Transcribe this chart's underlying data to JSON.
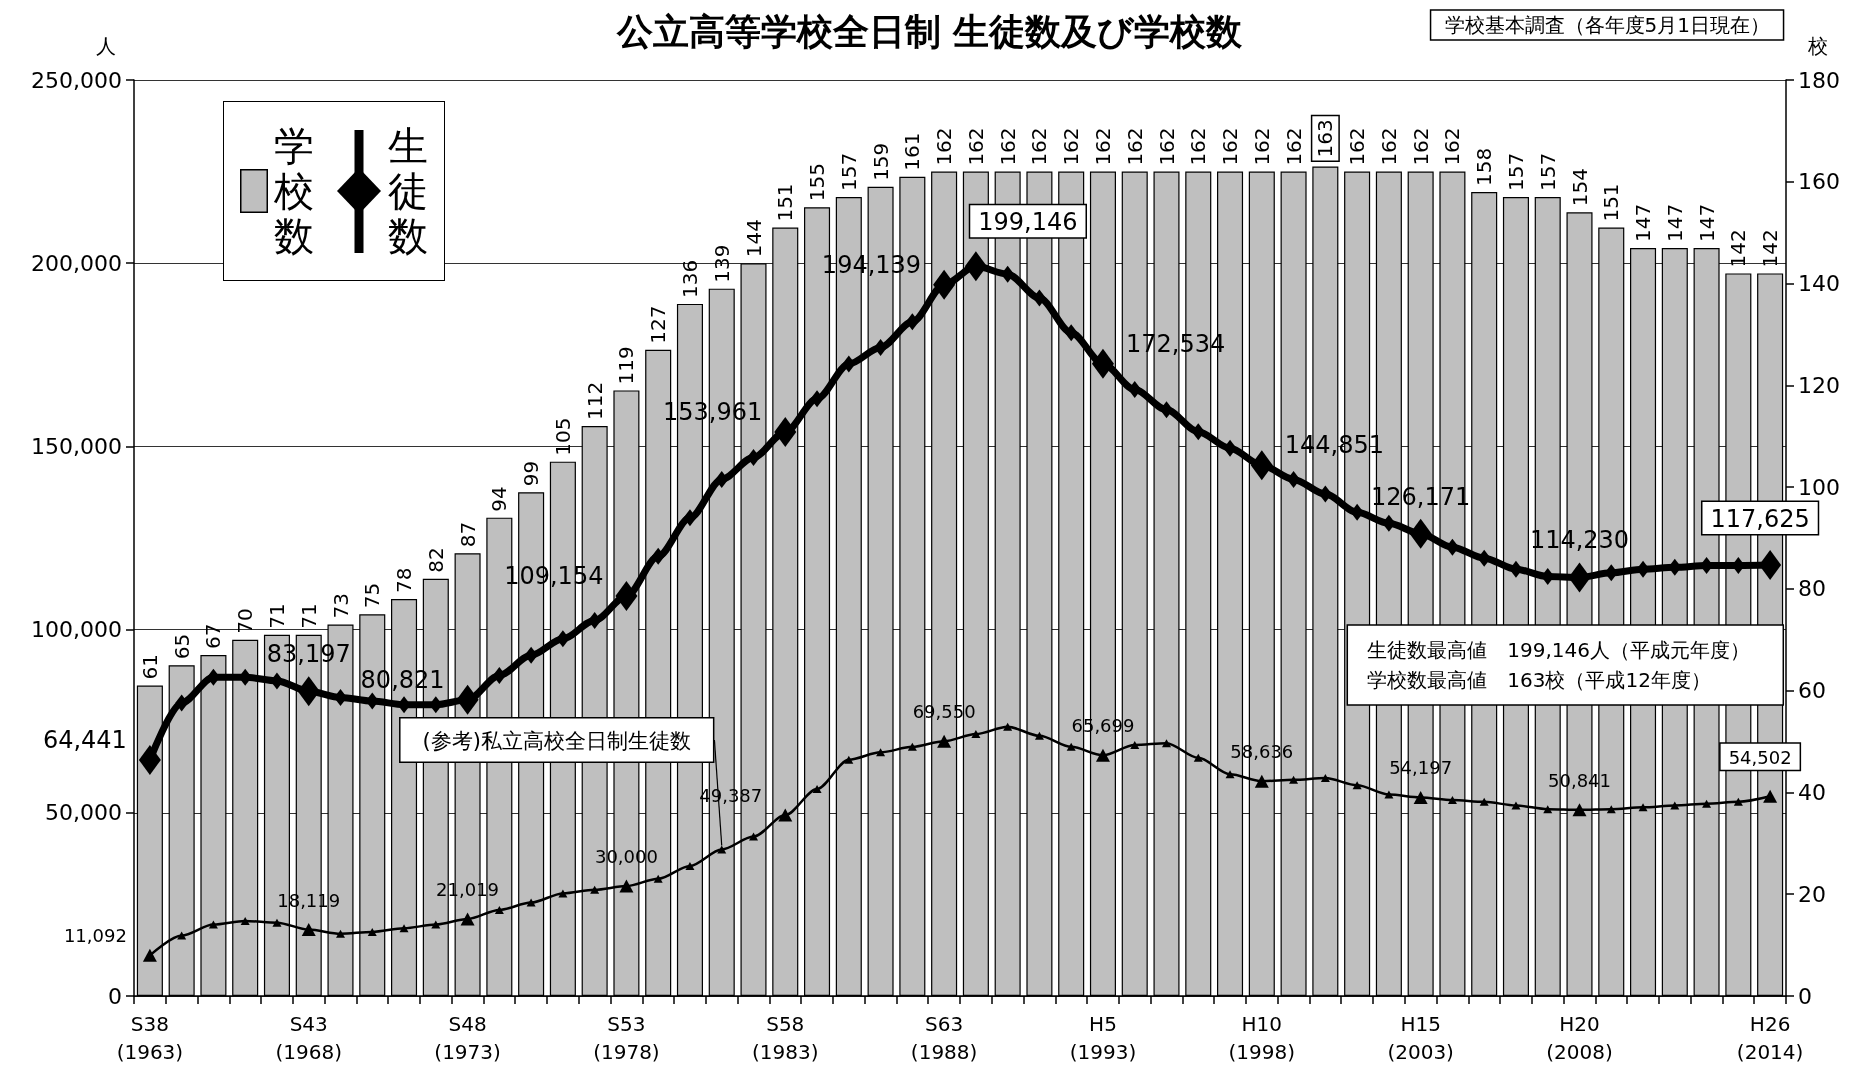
{
  "chart_data": {
    "type": "bar",
    "title": "公立高等学校全日制 生徒数及び学校数",
    "subtitle": "学校基本調査（各年度5月1日現在）",
    "ylabel": "人",
    "y2label": "校",
    "categories": [
      "S38\n(1963)",
      null,
      null,
      null,
      null,
      "S43\n(1968)",
      null,
      null,
      null,
      null,
      "S48\n(1973)",
      null,
      null,
      null,
      null,
      "S53\n(1978)",
      null,
      null,
      null,
      null,
      "S58\n(1983)",
      null,
      null,
      null,
      null,
      "S63\n(1988)",
      null,
      null,
      null,
      null,
      "H5\n(1993)",
      null,
      null,
      null,
      null,
      "H10\n(1998)",
      null,
      null,
      null,
      null,
      "H15\n(2003)",
      null,
      null,
      null,
      null,
      "H20\n(2008)",
      null,
      null,
      null,
      null,
      null,
      "H26\n(2014)"
    ],
    "series": [
      {
        "name": "学校数",
        "axis": "y2",
        "color": "#bfbfbf",
        "values": [
          61,
          65,
          67,
          70,
          71,
          71,
          73,
          75,
          78,
          82,
          87,
          94,
          99,
          105,
          112,
          119,
          127,
          136,
          139,
          144,
          151,
          155,
          157,
          159,
          161,
          162,
          162,
          162,
          162,
          162,
          162,
          162,
          162,
          162,
          162,
          162,
          162,
          163,
          162,
          162,
          162,
          162,
          158,
          157,
          157,
          154,
          151,
          147,
          147,
          147,
          142,
          142
        ],
        "value_labels": [
          "61",
          "65",
          "67",
          "70",
          "71",
          "71",
          "73",
          "75",
          "78",
          "82",
          "87",
          "94",
          "99",
          "105",
          "112",
          "119",
          "127",
          "136",
          "139",
          "144",
          "151",
          "155",
          "157",
          "159",
          "161",
          "162",
          "162",
          "162",
          "162",
          "162",
          "162",
          "162",
          "162",
          "162",
          "162",
          "162",
          "162",
          "163",
          "162",
          "162",
          "162",
          "162",
          "158",
          "157",
          "157",
          "154",
          "151",
          "147",
          "147",
          "147",
          "142",
          "142"
        ]
      },
      {
        "name": "生徒数",
        "type": "line",
        "color": "#000000",
        "marker": "diamond",
        "values": [
          64441,
          80000,
          87000,
          87000,
          86000,
          83197,
          81500,
          80500,
          79500,
          79500,
          80821,
          87500,
          93000,
          97500,
          102500,
          109154,
          120000,
          130500,
          141000,
          147000,
          153961,
          163000,
          172500,
          177000,
          184000,
          194139,
          199146,
          197000,
          190500,
          181000,
          172534,
          165500,
          160000,
          154000,
          149500,
          144851,
          141000,
          137000,
          132000,
          129000,
          126171,
          122500,
          119500,
          116500,
          114500,
          114230,
          115500,
          116500,
          117000,
          117500,
          117500,
          117625
        ],
        "value_labels": [
          "64,441",
          null,
          null,
          null,
          null,
          "83,197",
          null,
          null,
          null,
          null,
          "80,821",
          null,
          null,
          null,
          null,
          "109,154",
          null,
          null,
          null,
          null,
          "153,961",
          null,
          null,
          null,
          null,
          "194,139",
          "199,146",
          null,
          null,
          null,
          "172,534",
          null,
          null,
          null,
          null,
          "144,851",
          null,
          null,
          null,
          null,
          "126,171",
          null,
          null,
          null,
          null,
          "114,230",
          null,
          null,
          null,
          null,
          null,
          "117,625"
        ]
      },
      {
        "name": "(参考)私立高校全日制生徒数",
        "type": "line",
        "color": "#000000",
        "marker": "triangle",
        "values": [
          11092,
          16500,
          19500,
          20500,
          20000,
          18119,
          17000,
          17500,
          18500,
          19500,
          21019,
          23500,
          25500,
          28000,
          29000,
          30000,
          32000,
          35500,
          40000,
          43500,
          49387,
          56500,
          64500,
          66500,
          68000,
          69550,
          71500,
          73500,
          71000,
          68000,
          65699,
          68500,
          69000,
          65000,
          60500,
          58636,
          59000,
          59500,
          57500,
          55000,
          54197,
          53500,
          53000,
          52000,
          51000,
          50841,
          51000,
          51500,
          52000,
          52500,
          53000,
          54502
        ],
        "value_labels": [
          "11,092",
          null,
          null,
          null,
          null,
          "18,119",
          null,
          null,
          null,
          null,
          "21,019",
          null,
          null,
          null,
          null,
          "30,000",
          null,
          null,
          null,
          null,
          "49,387",
          null,
          null,
          null,
          null,
          "69,550",
          null,
          null,
          null,
          null,
          "65,699",
          null,
          null,
          null,
          null,
          "58,636",
          null,
          null,
          null,
          null,
          "54,197",
          null,
          null,
          null,
          null,
          "50,841",
          null,
          null,
          null,
          null,
          null,
          "54,502"
        ]
      }
    ],
    "ylim": [
      0,
      250000
    ],
    "yticks": [
      0,
      {
        "value": 50000,
        "label": "50,000"
      },
      {
        "value": 100000,
        "label": "100,000"
      },
      {
        "value": 150000,
        "label": "150,000"
      },
      {
        "value": 200000,
        "label": "200,000"
      },
      {
        "value": 250000,
        "label": "250,000"
      }
    ],
    "y2lim": [
      0,
      180
    ],
    "y2ticks": [
      0,
      20,
      40,
      60,
      80,
      100,
      120,
      140,
      160,
      180
    ],
    "grid": "y",
    "legend": "top left",
    "line_style": "solid",
    "annotations": [
      "生徒数最高値　199,146人（平成元年度）",
      "学校数最高値　163校（平成12年度）"
    ]
  }
}
